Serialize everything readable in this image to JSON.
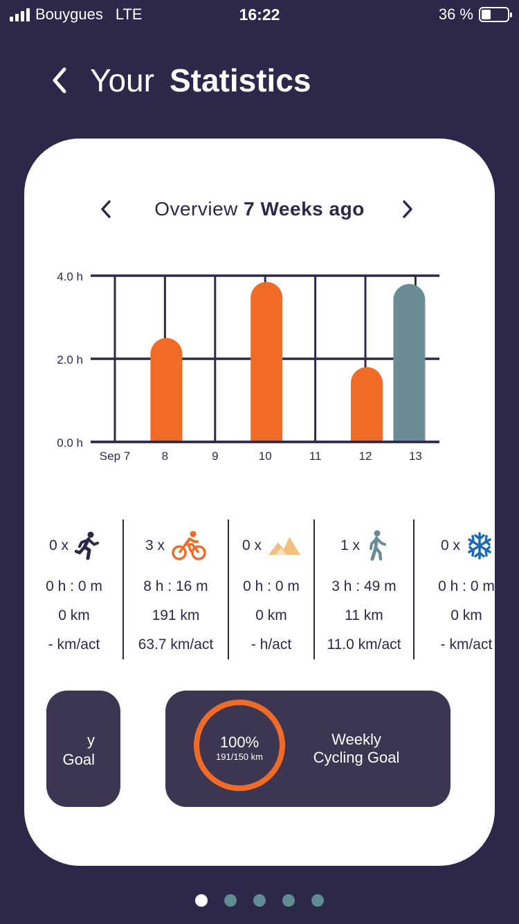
{
  "status_bar": {
    "carrier": "Bouygues",
    "network": "LTE",
    "time": "16:22",
    "battery_text": "36 %",
    "battery_level": 0.36
  },
  "header": {
    "title_light": "Your",
    "title_bold": "Statistics"
  },
  "overview": {
    "prefix": "Overview",
    "period": "7 Weeks ago"
  },
  "chart_data": {
    "type": "bar",
    "categories": [
      "Sep 7",
      "8",
      "9",
      "10",
      "11",
      "12",
      "13"
    ],
    "values": [
      0,
      2.5,
      0,
      3.85,
      0,
      1.8,
      3.8
    ],
    "bar_colors": [
      "#f06c26",
      "#f06c26",
      "#f06c26",
      "#f06c26",
      "#f06c26",
      "#f06c26",
      "#698c96"
    ],
    "yticks": [
      "0.0 h",
      "2.0 h",
      "4.0 h"
    ],
    "ylim": [
      0,
      4
    ],
    "grid": true
  },
  "stats": [
    {
      "icon": "running-icon",
      "count": "0 x",
      "duration": "0 h : 0 m",
      "distance": "0 km",
      "average": "- km/act"
    },
    {
      "icon": "cycling-icon",
      "count": "3 x",
      "duration": "8 h : 16 m",
      "distance": "191 km",
      "average": "63.7 km/act"
    },
    {
      "icon": "mountain-icon",
      "count": "0 x",
      "duration": "0 h : 0 m",
      "distance": "0 km",
      "average": "- h/act"
    },
    {
      "icon": "walking-icon",
      "count": "1 x",
      "duration": "3 h : 49 m",
      "distance": "11 km",
      "average": "11.0 km/act"
    },
    {
      "icon": "snowflake-icon",
      "count": "0 x",
      "duration": "0 h : 0 m",
      "distance": "0 km",
      "average": "- km/act"
    }
  ],
  "goals": {
    "prev_label_line1": "y",
    "prev_label_line2": "Goal",
    "percent": "100%",
    "progress_text": "191/150 km",
    "progress_fraction": 1.0,
    "label_line1": "Weekly",
    "label_line2": "Cycling Goal"
  },
  "colors": {
    "background": "#2d284a",
    "card": "#ffffff",
    "accent_orange": "#f06c26",
    "accent_teal": "#698c96",
    "goal_card": "#3c3653"
  },
  "pager": {
    "count": 5,
    "active_index": 0
  }
}
